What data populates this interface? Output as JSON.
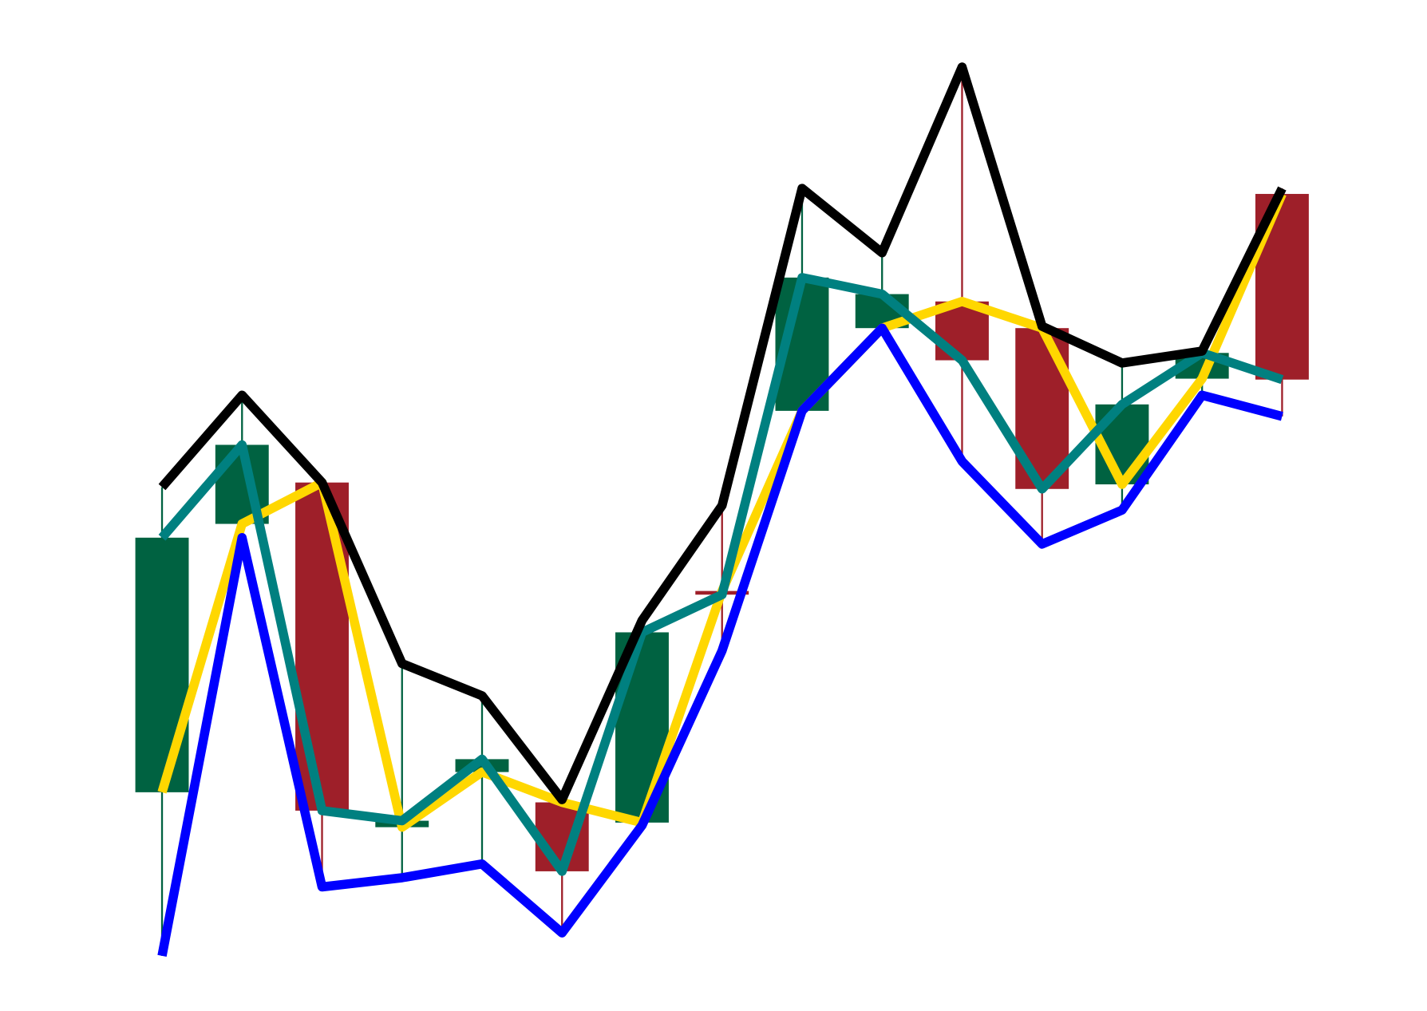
{
  "chart_data": {
    "type": "candlestick",
    "open": [
      23.8,
      53,
      57.5,
      20,
      26,
      22.7,
      20.5,
      45.7,
      65.3,
      74.3,
      77.2,
      74.3,
      57.3,
      68.8,
      88.9
    ],
    "high": [
      57,
      67,
      57.5,
      37.8,
      34.3,
      23,
      42.5,
      55,
      89.5,
      82.5,
      102.7,
      74.5,
      70.5,
      71.8,
      89.5
    ],
    "low": [
      6,
      51.5,
      13.5,
      14.5,
      16,
      8.5,
      20.2,
      39.2,
      65.3,
      74.3,
      59.8,
      50.8,
      54.5,
      67,
      64.7
    ],
    "close": [
      51.5,
      61.6,
      21.8,
      20.7,
      27.4,
      15.2,
      41.2,
      45.3,
      79.8,
      78,
      70.8,
      56.8,
      66,
      71.6,
      68.7
    ],
    "up_color": "#006241",
    "down_color": "#9e1f29",
    "line_colors": {
      "open": "#ffd700",
      "close": "#008080",
      "high": "#000000",
      "low": "#0000ff"
    },
    "ylim": [
      0,
      110
    ]
  }
}
